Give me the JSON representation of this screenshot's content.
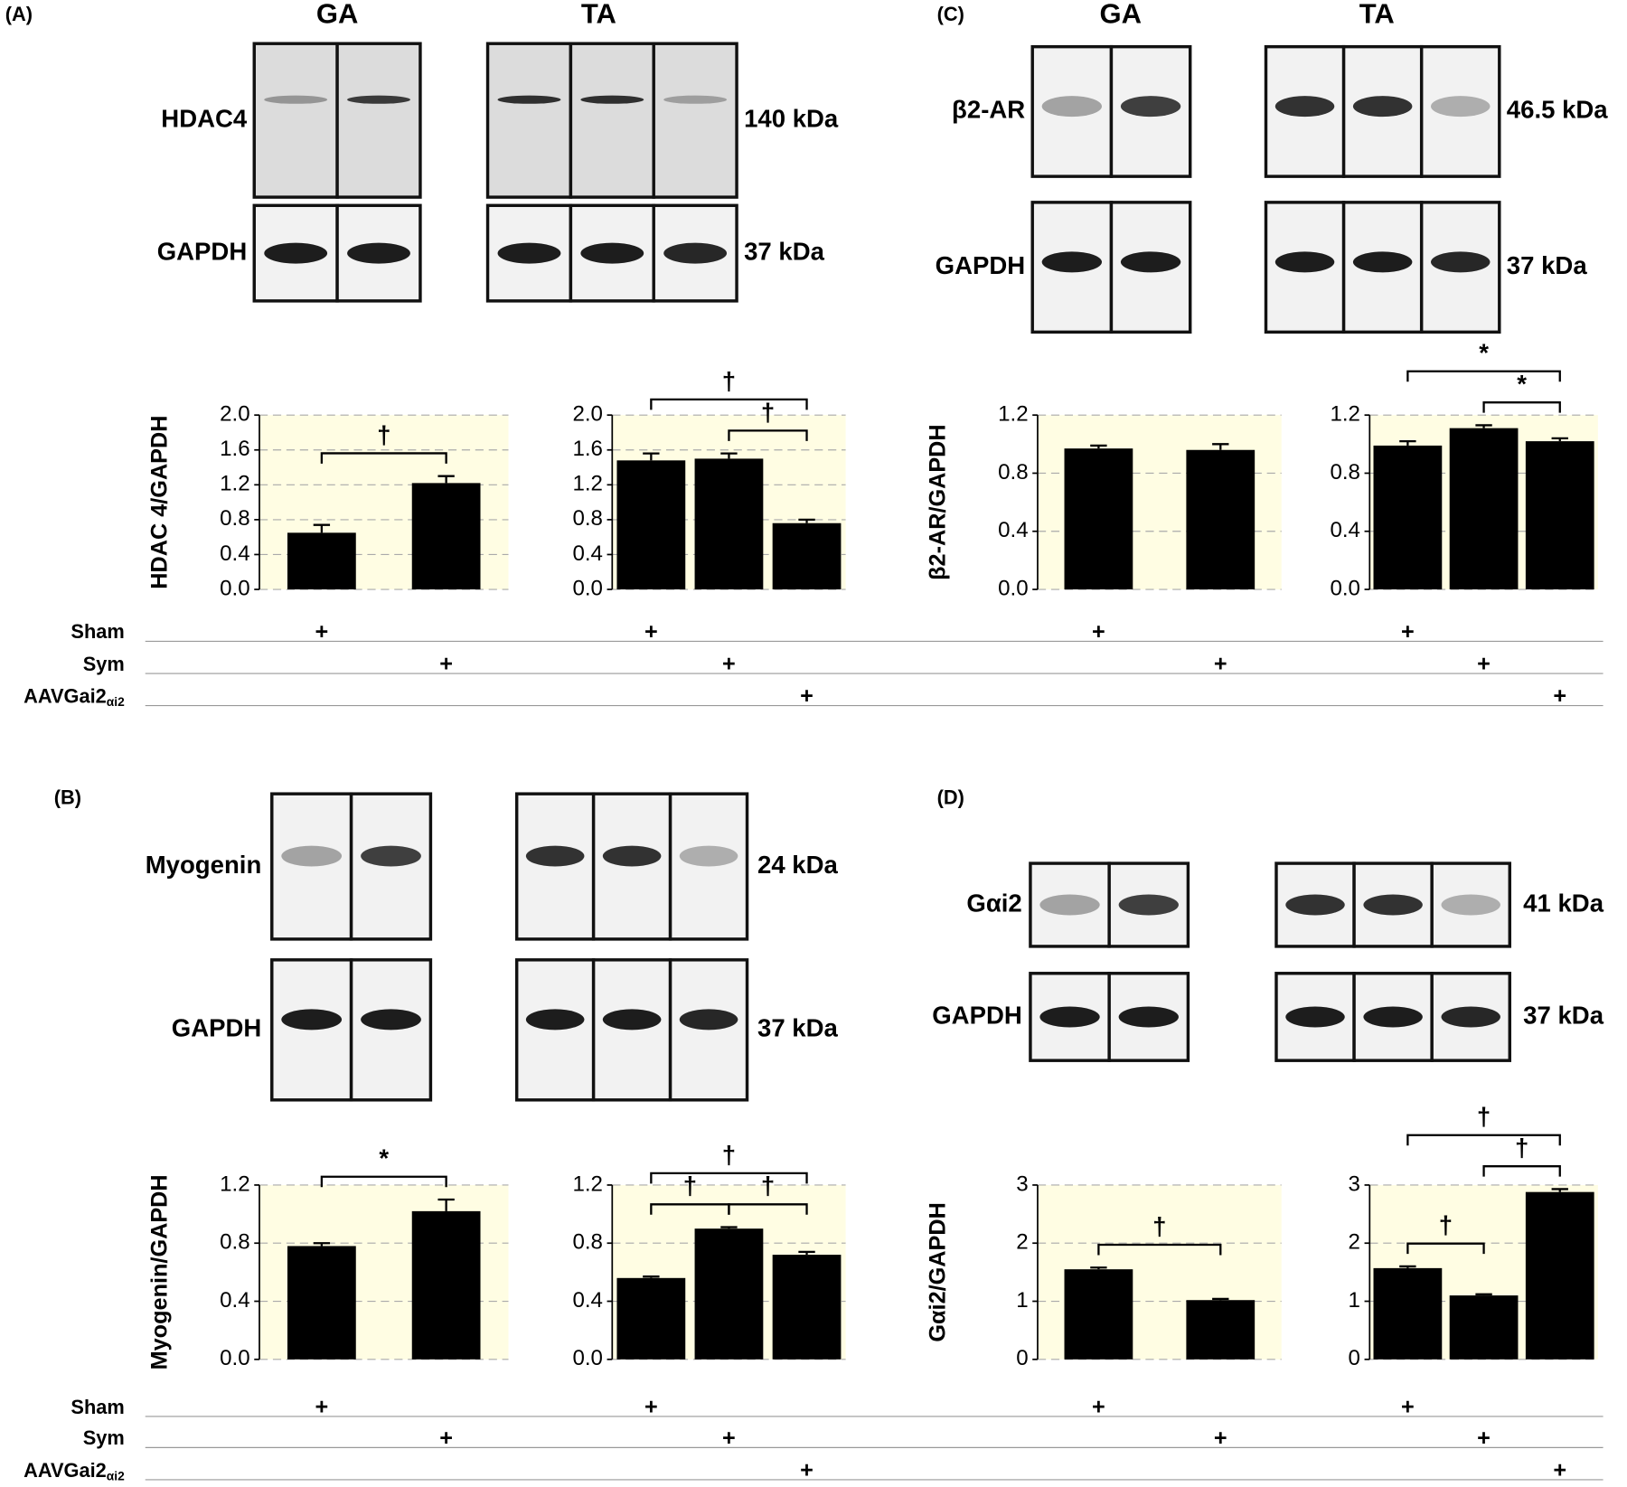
{
  "chart_data": [
    {
      "type": "bar",
      "ylabel": "HDAC 4/GAPDH",
      "categories": [
        "+",
        "+"
      ],
      "values": [
        0.65,
        1.22
      ],
      "errors": [
        0.09,
        0.08
      ],
      "color": "#000000",
      "background": "#fffde3",
      "grid": true,
      "ylim": [
        0,
        2
      ],
      "yticks": [
        {
          "value": 0,
          "label": "0.0"
        },
        {
          "value": 0.4,
          "label": "0.4"
        },
        {
          "value": 0.8,
          "label": "0.8"
        },
        {
          "value": 1.2,
          "label": "1.2"
        },
        {
          "value": 1.6,
          "label": "1.6"
        },
        {
          "value": 2,
          "label": "2.0"
        }
      ],
      "brackets": [
        {
          "label": "†",
          "bars": [
            0,
            1
          ]
        }
      ]
    },
    {
      "type": "bar",
      "categories": [
        "+",
        "+",
        "+"
      ],
      "values": [
        1.48,
        1.5,
        0.76
      ],
      "errors": [
        0.08,
        0.06,
        0.04
      ],
      "color": "#000000",
      "background": "#fffde3",
      "grid": true,
      "ylim": [
        0,
        2
      ],
      "yticks": [
        {
          "value": 0,
          "label": "0.0"
        },
        {
          "value": 0.4,
          "label": "0.4"
        },
        {
          "value": 0.8,
          "label": "0.8"
        },
        {
          "value": 1.2,
          "label": "1.2"
        },
        {
          "value": 1.6,
          "label": "1.6"
        },
        {
          "value": 2,
          "label": "2.0"
        }
      ],
      "brackets": [
        {
          "label": "†",
          "bars": [
            0,
            2
          ]
        },
        {
          "label": "†",
          "bars": [
            1,
            2
          ]
        }
      ]
    },
    {
      "type": "bar",
      "ylabel": "Myogenin/GAPDH",
      "categories": [
        "+",
        "+"
      ],
      "values": [
        0.78,
        1.02
      ],
      "errors": [
        0.02,
        0.08
      ],
      "color": "#000000",
      "background": "#fffde3",
      "grid": true,
      "ylim": [
        0,
        1.2
      ],
      "yticks": [
        {
          "value": 0,
          "label": "0.0"
        },
        {
          "value": 0.4,
          "label": "0.4"
        },
        {
          "value": 0.8,
          "label": "0.8"
        },
        {
          "value": 1.2,
          "label": "1.2"
        }
      ],
      "brackets": [
        {
          "label": "*",
          "bars": [
            0,
            1
          ]
        }
      ]
    },
    {
      "type": "bar",
      "categories": [
        "+",
        "+",
        "+"
      ],
      "values": [
        0.56,
        0.9,
        0.72
      ],
      "errors": [
        0.01,
        0.01,
        0.02
      ],
      "color": "#000000",
      "background": "#fffde3",
      "grid": true,
      "ylim": [
        0,
        1.2
      ],
      "yticks": [
        {
          "value": 0,
          "label": "0.0"
        },
        {
          "value": 0.4,
          "label": "0.4"
        },
        {
          "value": 0.8,
          "label": "0.8"
        },
        {
          "value": 1.2,
          "label": "1.2"
        }
      ],
      "brackets": [
        {
          "label": "†",
          "bars": [
            0,
            2
          ]
        },
        {
          "label": "†",
          "bars": [
            0,
            1
          ]
        },
        {
          "label": "†",
          "bars": [
            1,
            2
          ]
        }
      ]
    },
    {
      "type": "bar",
      "ylabel": "β2-AR/GAPDH",
      "categories": [
        "+",
        "+"
      ],
      "values": [
        0.97,
        0.96
      ],
      "errors": [
        0.02,
        0.04
      ],
      "color": "#000000",
      "background": "#fffde3",
      "grid": true,
      "ylim": [
        0,
        1.2
      ],
      "yticks": [
        {
          "value": 0,
          "label": "0.0"
        },
        {
          "value": 0.4,
          "label": "0.4"
        },
        {
          "value": 0.8,
          "label": "0.8"
        },
        {
          "value": 1.2,
          "label": "1.2"
        }
      ],
      "brackets": []
    },
    {
      "type": "bar",
      "categories": [
        "+",
        "+",
        "+"
      ],
      "values": [
        0.99,
        1.11,
        1.02
      ],
      "errors": [
        0.03,
        0.02,
        0.02
      ],
      "color": "#000000",
      "background": "#fffde3",
      "grid": true,
      "ylim": [
        0,
        1.2
      ],
      "yticks": [
        {
          "value": 0,
          "label": "0.0"
        },
        {
          "value": 0.4,
          "label": "0.4"
        },
        {
          "value": 0.8,
          "label": "0.8"
        },
        {
          "value": 1.2,
          "label": "1.2"
        }
      ],
      "brackets": [
        {
          "label": "*",
          "bars": [
            0,
            2
          ]
        },
        {
          "label": "*",
          "bars": [
            1,
            2
          ]
        }
      ]
    },
    {
      "type": "bar",
      "ylabel": "Gαi2/GAPDH",
      "categories": [
        "+",
        "+"
      ],
      "values": [
        1.55,
        1.02
      ],
      "errors": [
        0.03,
        0.02
      ],
      "color": "#000000",
      "background": "#fffde3",
      "grid": true,
      "ylim": [
        0,
        3
      ],
      "yticks": [
        0,
        1,
        2,
        3
      ],
      "brackets": [
        {
          "label": "†",
          "bars": [
            0,
            1
          ]
        }
      ]
    },
    {
      "type": "bar",
      "categories": [
        "+",
        "+",
        "+"
      ],
      "values": [
        1.57,
        1.1,
        2.88
      ],
      "errors": [
        0.03,
        0.02,
        0.05
      ],
      "color": "#000000",
      "background": "#fffde3",
      "grid": true,
      "ylim": [
        0,
        3
      ],
      "yticks": [
        0,
        1,
        2,
        3
      ],
      "brackets": [
        {
          "label": "†",
          "bars": [
            0,
            2
          ]
        },
        {
          "label": "†",
          "bars": [
            1,
            2
          ]
        },
        {
          "label": "†",
          "bars": [
            0,
            1
          ]
        }
      ]
    }
  ],
  "panels": [
    {
      "label": "(A)",
      "headers": [
        "GA",
        "TA"
      ],
      "blots": [
        {
          "name": "HDAC4",
          "size": "140 kDa"
        },
        {
          "name": "GAPDH",
          "size": "37 kDa"
        }
      ]
    },
    {
      "label": "(B)",
      "headers": [],
      "blots": [
        {
          "name": "Myogenin",
          "size": "24 kDa"
        },
        {
          "name": "GAPDH",
          "size": "37 kDa"
        }
      ]
    },
    {
      "label": "(C)",
      "headers": [
        "GA",
        "TA"
      ],
      "blots": [
        {
          "name": "β2-AR",
          "size": "46.5 kDa"
        },
        {
          "name": "GAPDH",
          "size": "37 kDa"
        }
      ]
    },
    {
      "label": "(D)",
      "headers": [],
      "blots": [
        {
          "name": "Gαi2",
          "size": "41 kDa"
        },
        {
          "name": "GAPDH",
          "size": "37 kDa"
        }
      ]
    }
  ],
  "row_labels": [
    [
      {
        "label": "Sham"
      },
      {
        "label": "Sym"
      },
      {
        "label": "AAVGai2",
        "sub": "αi2"
      }
    ],
    [
      {
        "label": "Sham"
      },
      {
        "label": "Sym"
      },
      {
        "label": "AAVGai2",
        "sub": "αi2"
      }
    ]
  ]
}
